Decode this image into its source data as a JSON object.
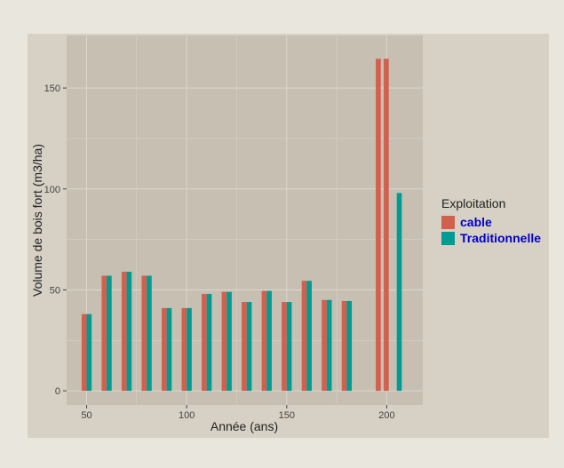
{
  "chart_data": {
    "type": "bar",
    "title": "",
    "xlabel": "Année (ans)",
    "ylabel": "Volume de bois fort (m3/ha)",
    "xlim": [
      40,
      218
    ],
    "ylim": [
      -7,
      176
    ],
    "x_ticks": [
      50,
      100,
      150,
      200
    ],
    "y_ticks": [
      0,
      50,
      100,
      150
    ],
    "legend": {
      "title": "Exploitation",
      "placement": "right",
      "entries": [
        "cable",
        "Traditionnelle"
      ]
    },
    "series": [
      {
        "name": "cable",
        "color": "#d2604f",
        "values": [
          {
            "x": 50,
            "y": 38
          },
          {
            "x": 60,
            "y": 57
          },
          {
            "x": 70,
            "y": 59
          },
          {
            "x": 80,
            "y": 57
          },
          {
            "x": 90,
            "y": 41
          },
          {
            "x": 100,
            "y": 41
          },
          {
            "x": 110,
            "y": 48
          },
          {
            "x": 120,
            "y": 49
          },
          {
            "x": 130,
            "y": 44
          },
          {
            "x": 140,
            "y": 49.5
          },
          {
            "x": 150,
            "y": 44
          },
          {
            "x": 160,
            "y": 54.5
          },
          {
            "x": 170,
            "y": 45
          },
          {
            "x": 180,
            "y": 44.5
          },
          {
            "x": 197,
            "y": 164.5
          },
          {
            "x": 201,
            "y": 164.5
          }
        ]
      },
      {
        "name": "Traditionnelle",
        "color": "#009b91",
        "values": [
          {
            "x": 50,
            "y": 38
          },
          {
            "x": 60,
            "y": 57
          },
          {
            "x": 70,
            "y": 59
          },
          {
            "x": 80,
            "y": 57
          },
          {
            "x": 90,
            "y": 41
          },
          {
            "x": 100,
            "y": 41
          },
          {
            "x": 110,
            "y": 48
          },
          {
            "x": 120,
            "y": 49
          },
          {
            "x": 130,
            "y": 44
          },
          {
            "x": 140,
            "y": 49.5
          },
          {
            "x": 150,
            "y": 44
          },
          {
            "x": 160,
            "y": 54.5
          },
          {
            "x": 170,
            "y": 45
          },
          {
            "x": 180,
            "y": 44.5
          },
          {
            "x": 205,
            "y": 98
          }
        ]
      }
    ],
    "colors": {
      "page_bg": "#e9e6dd",
      "plot_bg": "#c6bfb2",
      "panel_bg": "#d6d1c4",
      "grid": "#dcd7cd",
      "text": "#222222",
      "legend_label": "#0000cc"
    }
  }
}
